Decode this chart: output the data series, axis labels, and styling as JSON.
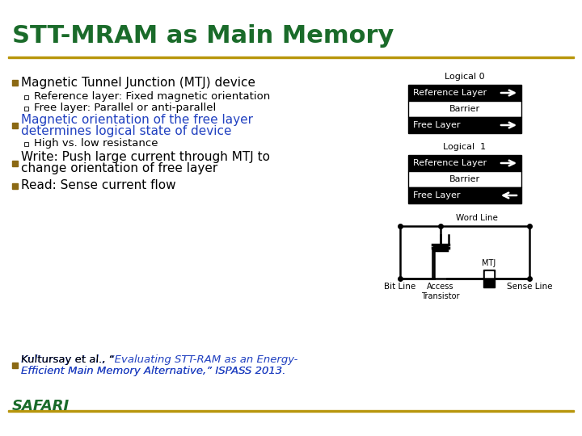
{
  "title": "STT-MRAM as Main Memory",
  "title_color": "#1a6b2a",
  "title_fontsize": 22,
  "bg_color": "#ffffff",
  "gold_line_color": "#b8960c",
  "bullet_color": "#8B6914",
  "text_color": "#000000",
  "blue_color": "#2040c0",
  "safari_color": "#1a6b2a",
  "bullet1": "Magnetic Tunnel Junction (MTJ) device",
  "sub1a": "Reference layer: Fixed magnetic orientation",
  "sub1b": "Free layer: Parallel or anti-parallel",
  "bullet2_line1": "Magnetic orientation of the free layer",
  "bullet2_line2": "determines logical state of device",
  "sub2a": "High vs. low resistance",
  "bullet3_line1": "Write: Push large current through MTJ to",
  "bullet3_line2": "change orientation of free layer",
  "bullet4": "Read: Sense current flow",
  "citation_plain1": "Kultursay et al., “",
  "citation_blue1": "Evaluating STT-RAM as an Energy-",
  "citation_blue2": "Efficient Main Memory Alternative",
  "citation_plain2": ",” ISPASS 2013.",
  "safari_text": "SAFARI",
  "logical0_label": "Logical 0",
  "logical1_label": "Logical  1",
  "ref_layer_text": "Reference Layer",
  "barrier_text": "Barrier",
  "free_layer_text": "Free Layer",
  "word_line_text": "Word Line",
  "bit_line_text": "Bit Line",
  "sense_line_text": "Sense Line",
  "access_transistor_text": "Access\nTransistor",
  "mtj_text": "MTJ",
  "bullet_size": 7,
  "sub_bullet_size": 5,
  "main_fontsize": 11,
  "sub_fontsize": 9.5,
  "diagram_fontsize": 8,
  "safari_fontsize": 13
}
